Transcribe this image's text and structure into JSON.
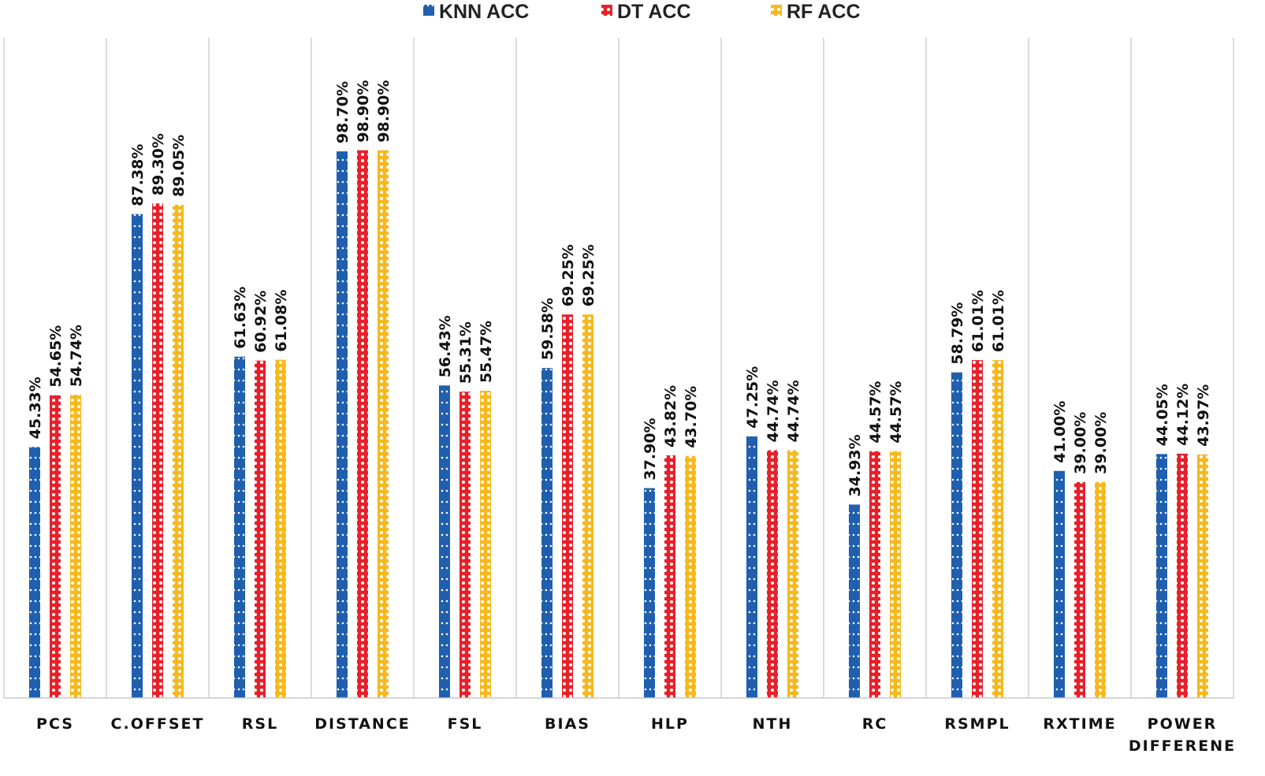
{
  "chart_data": {
    "type": "bar",
    "title": "",
    "xlabel": "",
    "ylabel": "",
    "ylim": [
      0,
      100
    ],
    "grid": false,
    "legend_position": "top-center",
    "categories": [
      [
        "PCS"
      ],
      [
        "C.OFFSET"
      ],
      [
        "RSL"
      ],
      [
        "DISTANCE"
      ],
      [
        "FSL"
      ],
      [
        "BIAS"
      ],
      [
        "HLP"
      ],
      [
        "NTH"
      ],
      [
        "RC"
      ],
      [
        "RSMPL"
      ],
      [
        "RXTIME"
      ],
      [
        "POWER",
        "DIFFERENE"
      ]
    ],
    "series": [
      {
        "name": "KNN ACC",
        "color": "#1f5fae",
        "pattern": "dots",
        "values": [
          45.33,
          87.38,
          61.63,
          98.7,
          56.43,
          59.58,
          37.9,
          47.25,
          34.93,
          58.79,
          41.0,
          44.05
        ],
        "labels": [
          "45.33%",
          "87.38%",
          "61.63%",
          "98.70%",
          "56.43%",
          "59.58%",
          "37.90%",
          "47.25%",
          "34.93%",
          "58.79%",
          "41.00%",
          "44.05%"
        ]
      },
      {
        "name": "DT ACC",
        "color": "#e8202a",
        "pattern": "crosses",
        "values": [
          54.65,
          89.3,
          60.92,
          98.9,
          55.31,
          69.25,
          43.82,
          44.74,
          44.57,
          61.01,
          39.0,
          44.12
        ],
        "labels": [
          "54.65%",
          "89.30%",
          "60.92%",
          "98.90%",
          "55.31%",
          "69.25%",
          "43.82%",
          "44.74%",
          "44.57%",
          "61.01%",
          "39.00%",
          "44.12%"
        ]
      },
      {
        "name": "RF ACC",
        "color": "#f6b81c",
        "pattern": "rings",
        "values": [
          54.74,
          89.05,
          61.08,
          98.9,
          55.47,
          69.25,
          43.7,
          44.74,
          44.57,
          61.01,
          39.0,
          43.97
        ],
        "labels": [
          "54.74%",
          "89.05%",
          "61.08%",
          "98.90%",
          "55.47%",
          "69.25%",
          "43.70%",
          "44.74%",
          "44.57%",
          "61.01%",
          "39.00%",
          "43.97%"
        ]
      }
    ]
  }
}
